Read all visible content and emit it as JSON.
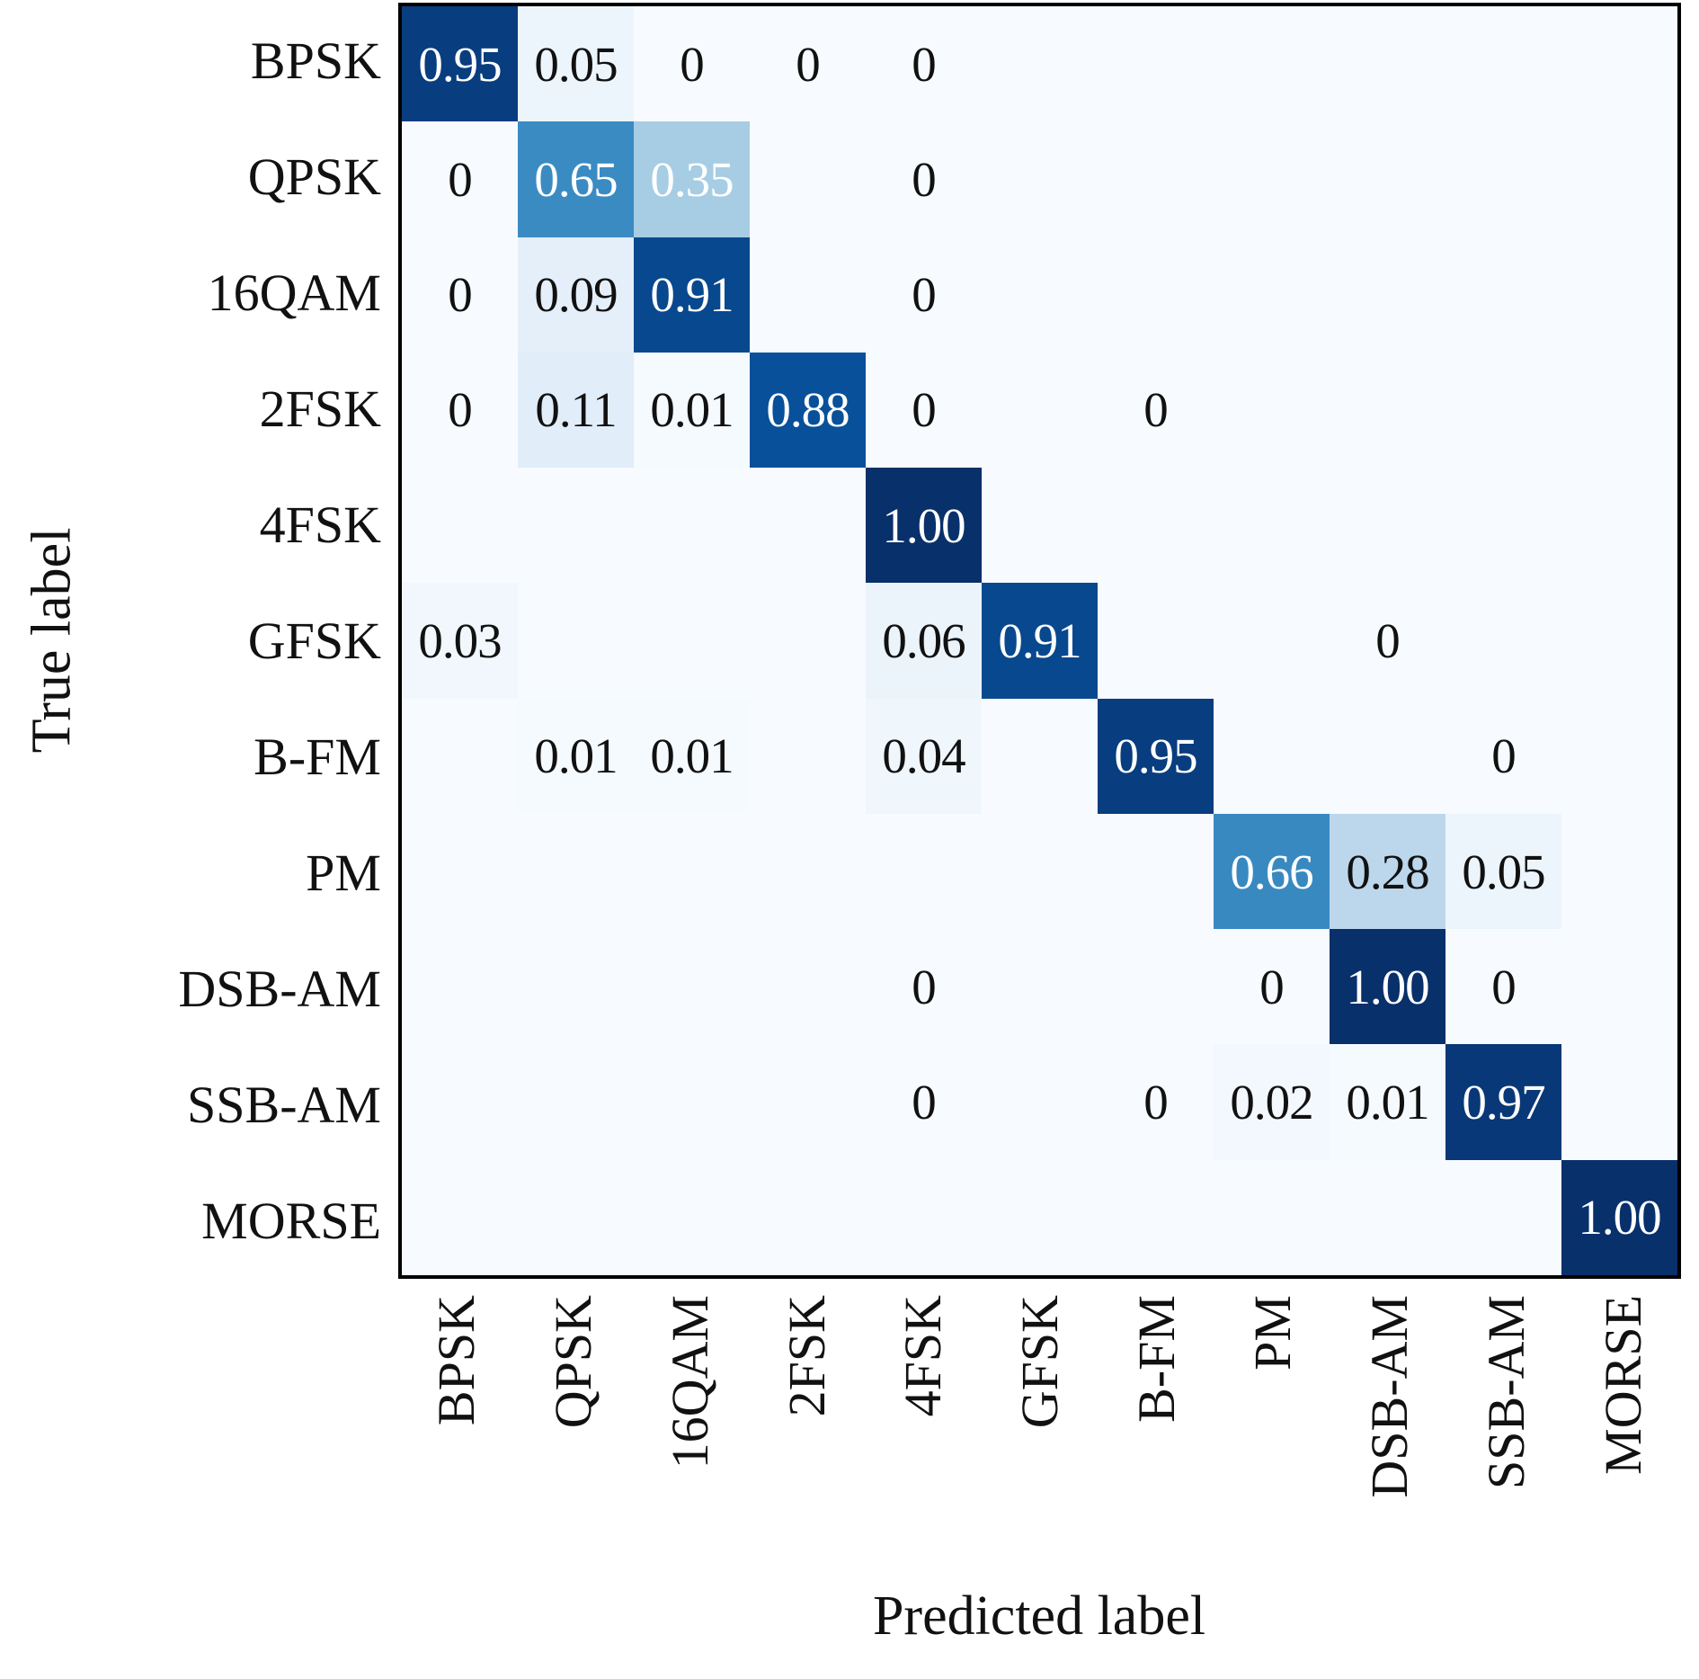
{
  "figure": {
    "x_axis_title": "Predicted label",
    "y_axis_title": "True label"
  },
  "chart_data": {
    "type": "heatmap",
    "subtype": "confusion-matrix",
    "title": "",
    "xlabel": "Predicted label",
    "ylabel": "True label",
    "categories": [
      "BPSK",
      "QPSK",
      "16QAM",
      "2FSK",
      "4FSK",
      "GFSK",
      "B-FM",
      "PM",
      "DSB-AM",
      "SSB-AM",
      "MORSE"
    ],
    "rows": [
      {
        "label": "BPSK",
        "cells": [
          "0.95",
          "0.05",
          "0",
          "0",
          "0",
          null,
          null,
          null,
          null,
          null,
          null
        ]
      },
      {
        "label": "QPSK",
        "cells": [
          "0",
          "0.65",
          "0.35",
          null,
          "0",
          null,
          null,
          null,
          null,
          null,
          null
        ]
      },
      {
        "label": "16QAM",
        "cells": [
          "0",
          "0.09",
          "0.91",
          null,
          "0",
          null,
          null,
          null,
          null,
          null,
          null
        ]
      },
      {
        "label": "2FSK",
        "cells": [
          "0",
          "0.11",
          "0.01",
          "0.88",
          "0",
          null,
          "0",
          null,
          null,
          null,
          null
        ]
      },
      {
        "label": "4FSK",
        "cells": [
          null,
          null,
          null,
          null,
          "1.00",
          null,
          null,
          null,
          null,
          null,
          null
        ]
      },
      {
        "label": "GFSK",
        "cells": [
          "0.03",
          null,
          null,
          null,
          "0.06",
          "0.91",
          null,
          null,
          "0",
          null,
          null
        ]
      },
      {
        "label": "B-FM",
        "cells": [
          null,
          "0.01",
          "0.01",
          null,
          "0.04",
          null,
          "0.95",
          null,
          null,
          "0",
          null
        ]
      },
      {
        "label": "PM",
        "cells": [
          null,
          null,
          null,
          null,
          null,
          null,
          null,
          "0.66",
          "0.28",
          "0.05",
          null
        ]
      },
      {
        "label": "DSB-AM",
        "cells": [
          null,
          null,
          null,
          null,
          "0",
          null,
          null,
          "0",
          "1.00",
          "0",
          null
        ]
      },
      {
        "label": "SSB-AM",
        "cells": [
          null,
          null,
          null,
          null,
          "0",
          null,
          "0",
          "0.02",
          "0.01",
          "0.97",
          null
        ]
      },
      {
        "label": "MORSE",
        "cells": [
          null,
          null,
          null,
          null,
          null,
          null,
          null,
          null,
          null,
          null,
          "1.00"
        ]
      }
    ],
    "value_range": [
      0,
      1
    ],
    "colormap": "Blues",
    "colors": {
      "cmap_min": "#f7fbff",
      "cmap_max": "#08306b",
      "border": "#000000",
      "text_dark": "#111111",
      "text_light": "#ffffff"
    },
    "white_text_threshold": 0.33,
    "grid": false,
    "legend": "none"
  }
}
